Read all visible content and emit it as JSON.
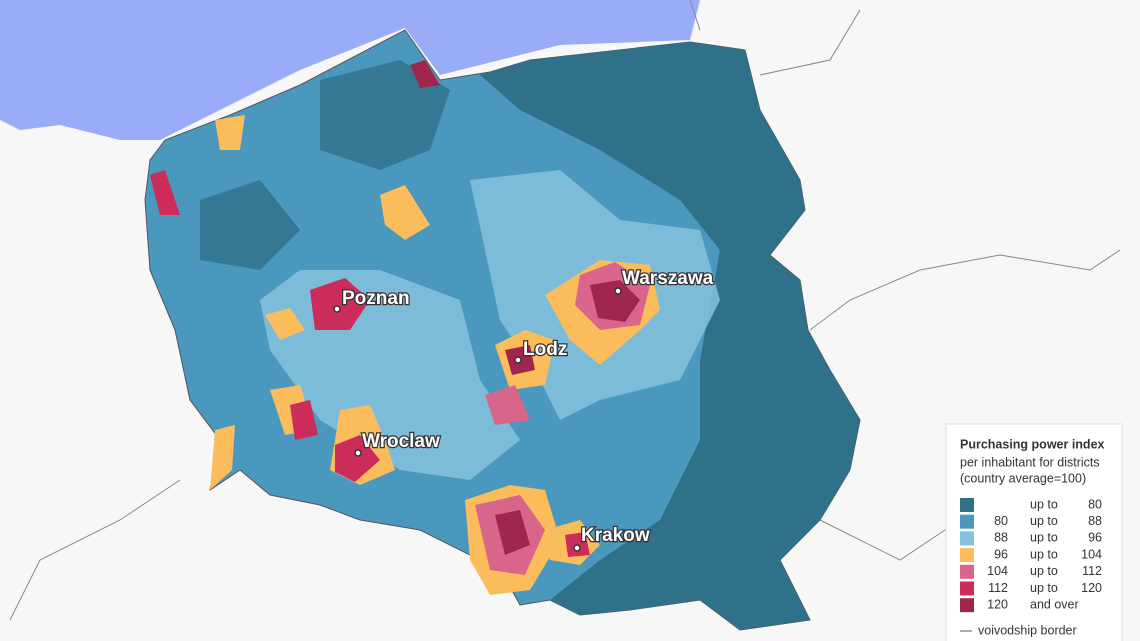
{
  "cities": [
    "Warszawa",
    "Poznan",
    "Lodz",
    "Wroclaw",
    "Krakow"
  ],
  "legend": {
    "title": "Purchasing power index",
    "subtitle": [
      "per inhabitant for districts",
      "(country average=100)"
    ],
    "rows": [
      {
        "text": "up to",
        "to": 80,
        "color": "#2e7189"
      },
      {
        "from": 80,
        "text": "up to",
        "to": 88,
        "color": "#4b98be"
      },
      {
        "from": 88,
        "text": "up to",
        "to": 96,
        "color": "#86c2de"
      },
      {
        "from": 96,
        "text": "up to",
        "to": 104,
        "color": "#fbbd5c"
      },
      {
        "from": 104,
        "text": "up to",
        "to": 112,
        "color": "#d9668a"
      },
      {
        "from": 112,
        "text": "up to",
        "to": 120,
        "color": "#cc2c5a"
      },
      {
        "from": 120,
        "text": "and over",
        "color": "#a0264e"
      }
    ],
    "border_label": "voivodship border"
  }
}
